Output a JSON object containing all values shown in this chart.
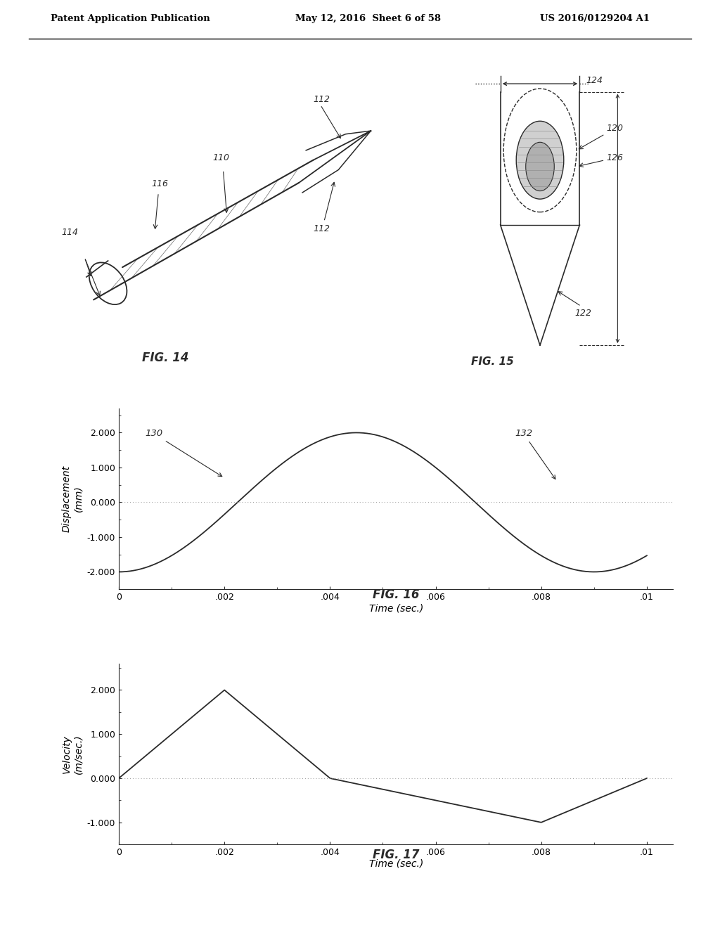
{
  "bg_color": "#ffffff",
  "header_left": "Patent Application Publication",
  "header_mid": "May 12, 2016  Sheet 6 of 58",
  "header_right": "US 2016/0129204 A1",
  "fig14_label": "FIG. 14",
  "fig15_label": "FIG. 15",
  "fig16_label": "FIG. 16",
  "fig17_label": "FIG. 17",
  "fig16_ylabel": "Displacement\n(mm)",
  "fig16_xlabel": "Time (sec.)",
  "fig16_yticks": [
    -2.0,
    -1.0,
    0.0,
    1.0,
    2.0
  ],
  "fig16_ytick_labels": [
    "-2.000",
    "-1.000",
    "0.000",
    "1.000",
    "2.000"
  ],
  "fig16_xticks": [
    0,
    0.002,
    0.004,
    0.006,
    0.008,
    0.01
  ],
  "fig16_xtick_labels": [
    "0",
    ".002",
    ".004",
    ".006",
    ".008",
    ".01"
  ],
  "fig17_ylabel": "Velocity\n(m/sec.)",
  "fig17_xlabel": "Time (sec.)",
  "fig17_yticks": [
    -1.0,
    0.0,
    1.0,
    2.0
  ],
  "fig17_ytick_labels": [
    "-1.000",
    "0.000",
    "1.000",
    "2.000"
  ],
  "fig17_xticks": [
    0,
    0.002,
    0.004,
    0.006,
    0.008,
    0.01
  ],
  "fig17_xtick_labels": [
    "0",
    ".002",
    ".004",
    ".006",
    ".008",
    ".01"
  ],
  "line_color": "#2a2a2a",
  "dot_line_color": "#999999"
}
